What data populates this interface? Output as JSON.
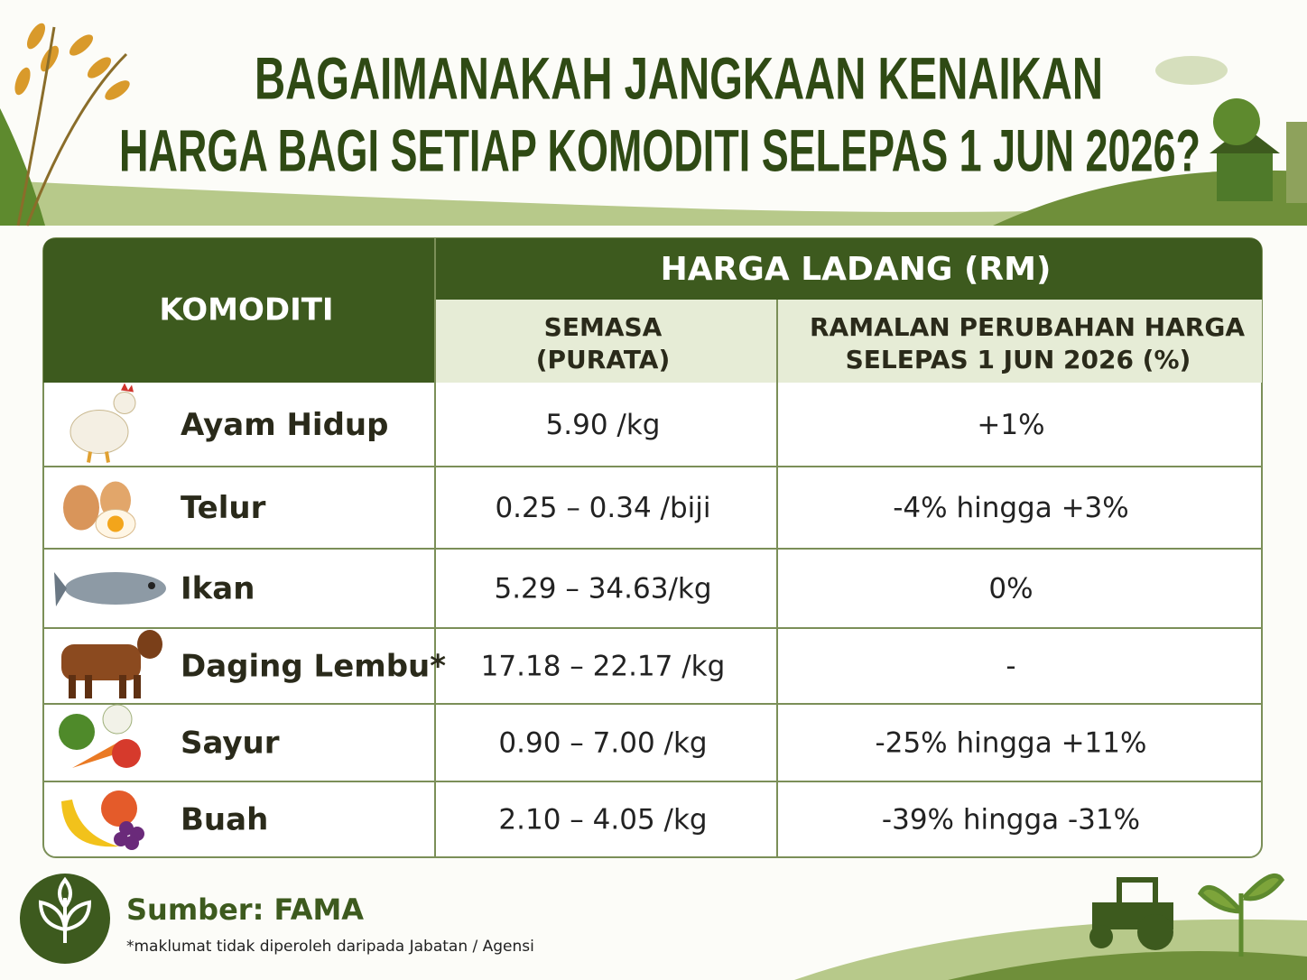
{
  "header": {
    "title_lines": [
      "BAGAIMANAKAH JANGKAAN KENAIKAN",
      "HARGA BAGI SETIAP KOMODITI SELEPAS 1 JUN 2026?"
    ]
  },
  "table": {
    "group_header": "HARGA LADANG (RM)",
    "columns": [
      "KOMODITI",
      [
        "SEMASA",
        "(PURATA)"
      ],
      [
        "RAMALAN PERUBAHAN HARGA",
        "SELEPAS 1 JUN 2026 (%)"
      ]
    ],
    "rows": [
      [
        "Ayam Hidup",
        "5.90 /kg",
        "+1%"
      ],
      [
        "Telur",
        "0.25 – 0.34 /biji",
        "-4% hingga +3%"
      ],
      [
        "Ikan",
        "5.29 – 34.63/kg",
        "0%"
      ],
      [
        "Daging Lembu*",
        "17.18 – 22.17 /kg",
        "-"
      ],
      [
        "Sayur",
        "0.90 – 7.00 /kg",
        "-25% hingga +11%"
      ],
      [
        "Buah",
        "2.10 – 4.05 /kg",
        "-39% hingga -31%"
      ]
    ]
  },
  "footer": {
    "source": "Sumber: FAMA",
    "note": "*maklumat tidak diperoleh daripada Jabatan / Agensi"
  }
}
